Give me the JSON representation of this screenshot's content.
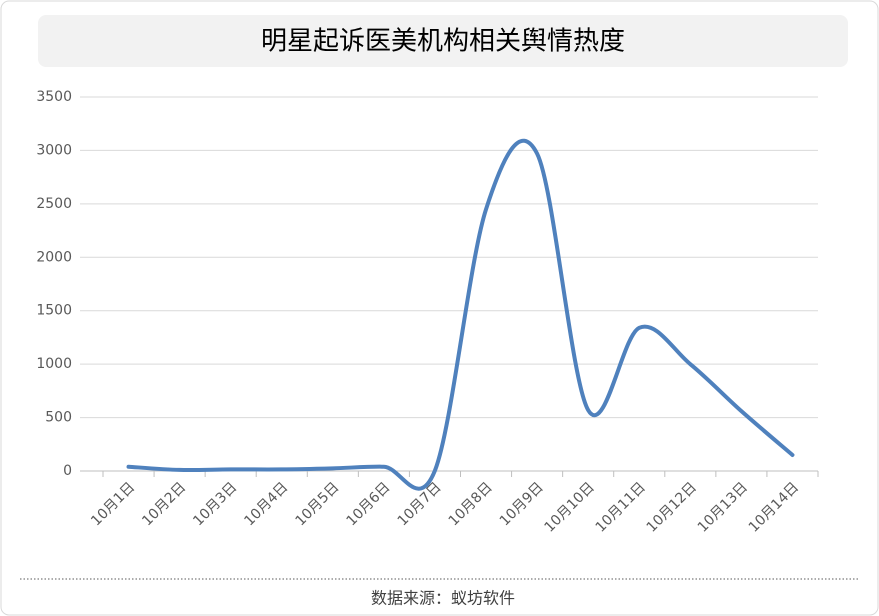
{
  "chart_data": {
    "type": "line",
    "title": "明星起诉医美机构相关舆情热度",
    "categories": [
      "10月1日",
      "10月2日",
      "10月3日",
      "10月4日",
      "10月5日",
      "10月6日",
      "10月7日",
      "10月8日",
      "10月9日",
      "10月10日",
      "10月11日",
      "10月12日",
      "10月13日",
      "10月14日"
    ],
    "values": [
      40,
      10,
      15,
      15,
      25,
      40,
      5,
      2450,
      2970,
      570,
      1340,
      1000,
      560,
      150
    ],
    "color": "#4f81bd",
    "smooth": true,
    "ylim": [
      0,
      3500
    ],
    "yticks": [
      0,
      500,
      1000,
      1500,
      2000,
      2500,
      3000,
      3500
    ],
    "grid": true,
    "source": "数据来源：蚁坊软件"
  }
}
